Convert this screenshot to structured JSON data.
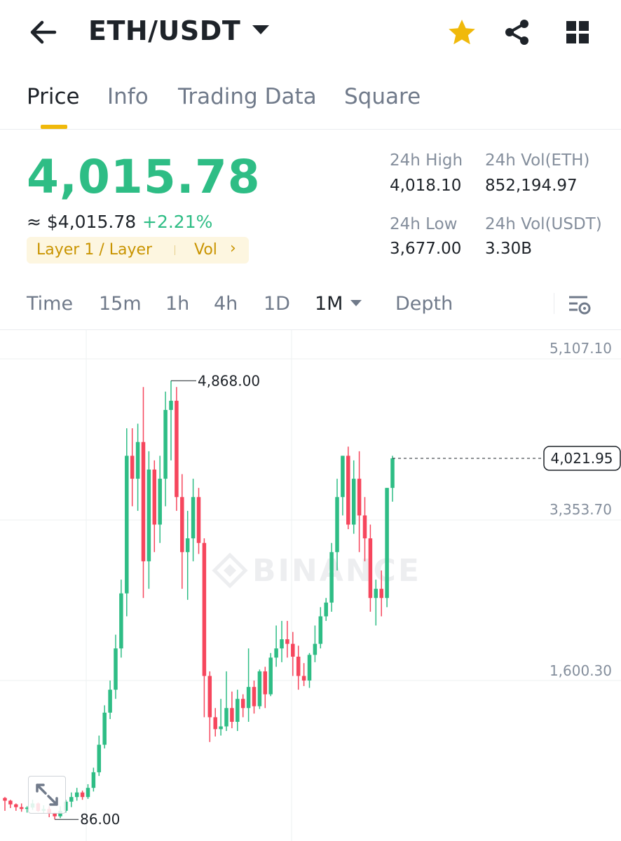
{
  "header": {
    "pair": "ETH/USDT",
    "icons": {
      "back": "arrow-left-icon",
      "favorite": "star-icon",
      "share": "share-icon",
      "more": "grid-icon"
    },
    "favorite_color": "#f0b90b"
  },
  "tabs": [
    {
      "label": "Price",
      "active": true
    },
    {
      "label": "Info",
      "active": false
    },
    {
      "label": "Trading Data",
      "active": false
    },
    {
      "label": "Square",
      "active": false
    }
  ],
  "price": {
    "last": "4,015.78",
    "usd_equiv": "≈ $4,015.78",
    "change": "+2.21%",
    "tag_category": "Layer 1 / Layer",
    "tag_vol": "Vol",
    "up_color": "#2ebd85",
    "down_color": "#f6465d"
  },
  "stats": {
    "high_label": "24h High",
    "high_value": "4,018.10",
    "vol_eth_label": "24h Vol(ETH)",
    "vol_eth_value": "852,194.97",
    "low_label": "24h Low",
    "low_value": "3,677.00",
    "vol_usdt_label": "24h Vol(USDT)",
    "vol_usdt_value": "3.30B"
  },
  "timeframes": [
    {
      "label": "Time",
      "active": false
    },
    {
      "label": "15m",
      "active": false
    },
    {
      "label": "1h",
      "active": false
    },
    {
      "label": "4h",
      "active": false
    },
    {
      "label": "1D",
      "active": false
    },
    {
      "label": "1M",
      "active": true
    },
    {
      "label": "Depth",
      "active": false
    }
  ],
  "chart": {
    "watermark": "BINANCE",
    "price_axis": [
      "5,107.10",
      "3,353.70",
      "1,600.30"
    ],
    "current_price_label": "4,021.95",
    "max_label": "4,868.00",
    "min_label": "86.00"
  },
  "chart_data": {
    "type": "candlestick",
    "interval": "1M",
    "y_axis_ticks": [
      5107.1,
      3353.7,
      1600.3
    ],
    "annotations": {
      "max": 4868.0,
      "min": 86.0,
      "current": 4021.95
    },
    "candles": [
      [
        320,
        330,
        180,
        290
      ],
      [
        290,
        300,
        210,
        250
      ],
      [
        250,
        260,
        180,
        220
      ],
      [
        220,
        260,
        170,
        200
      ],
      [
        200,
        230,
        160,
        215
      ],
      [
        215,
        300,
        190,
        260
      ],
      [
        260,
        270,
        170,
        180
      ],
      [
        180,
        240,
        150,
        200
      ],
      [
        200,
        230,
        110,
        150
      ],
      [
        150,
        160,
        86,
        120
      ],
      [
        120,
        230,
        100,
        180
      ],
      [
        180,
        300,
        160,
        280
      ],
      [
        280,
        380,
        220,
        330
      ],
      [
        330,
        430,
        290,
        380
      ],
      [
        380,
        400,
        300,
        330
      ],
      [
        330,
        470,
        310,
        430
      ],
      [
        430,
        650,
        390,
        600
      ],
      [
        600,
        1000,
        560,
        900
      ],
      [
        900,
        1330,
        860,
        1250
      ],
      [
        1250,
        1600,
        1180,
        1500
      ],
      [
        1500,
        2100,
        1400,
        1950
      ],
      [
        1950,
        2700,
        1850,
        2550
      ],
      [
        2550,
        4350,
        2300,
        4050
      ],
      [
        4050,
        4350,
        3500,
        3800
      ],
      [
        3800,
        4400,
        3450,
        4200
      ],
      [
        4200,
        4800,
        2500,
        2900
      ],
      [
        2900,
        4100,
        2600,
        3900
      ],
      [
        3900,
        4000,
        3000,
        3300
      ],
      [
        3300,
        4050,
        3100,
        3800
      ],
      [
        3800,
        4750,
        3500,
        4550
      ],
      [
        4550,
        4868,
        4000,
        4650
      ],
      [
        4650,
        4800,
        3450,
        3600
      ],
      [
        3600,
        3850,
        2600,
        3000
      ],
      [
        3000,
        3450,
        2480,
        3150
      ],
      [
        3150,
        3800,
        2900,
        3600
      ],
      [
        3600,
        3700,
        2980,
        3100
      ],
      [
        3100,
        3150,
        1200,
        1650
      ],
      [
        1650,
        1700,
        930,
        1200
      ],
      [
        1200,
        1300,
        990,
        1070
      ],
      [
        1070,
        1400,
        1000,
        1100
      ],
      [
        1100,
        1700,
        1050,
        1300
      ],
      [
        1300,
        1480,
        1080,
        1150
      ],
      [
        1150,
        1500,
        1050,
        1400
      ],
      [
        1400,
        1450,
        1200,
        1300
      ],
      [
        1300,
        1950,
        1150,
        1530
      ],
      [
        1530,
        1600,
        1240,
        1320
      ],
      [
        1320,
        1720,
        1290,
        1700
      ],
      [
        1700,
        1750,
        1300,
        1450
      ],
      [
        1450,
        1900,
        1430,
        1850
      ],
      [
        1850,
        2200,
        1750,
        1950
      ],
      [
        1950,
        2250,
        1800,
        2050
      ],
      [
        2050,
        2250,
        1850,
        2000
      ],
      [
        2000,
        2130,
        1650,
        1860
      ],
      [
        1860,
        1980,
        1500,
        1650
      ],
      [
        1650,
        1790,
        1540,
        1600
      ],
      [
        1600,
        1900,
        1520,
        1880
      ],
      [
        1880,
        2200,
        1800,
        2000
      ],
      [
        2000,
        2400,
        1950,
        2300
      ],
      [
        2300,
        2500,
        2250,
        2450
      ],
      [
        2450,
        3100,
        2350,
        3000
      ],
      [
        3000,
        3800,
        2800,
        3600
      ],
      [
        3600,
        4050,
        3400,
        4050
      ],
      [
        4050,
        4150,
        3250,
        3300
      ],
      [
        3300,
        4000,
        3200,
        3800
      ],
      [
        3800,
        4100,
        3000,
        3400
      ],
      [
        3400,
        3600,
        2900,
        3150
      ],
      [
        3150,
        3300,
        2350,
        2500
      ],
      [
        2500,
        2700,
        2200,
        2600
      ],
      [
        2600,
        2800,
        2300,
        2500
      ],
      [
        2500,
        3700,
        2400,
        3700
      ],
      [
        3700,
        4050,
        3550,
        4021.95
      ]
    ]
  }
}
